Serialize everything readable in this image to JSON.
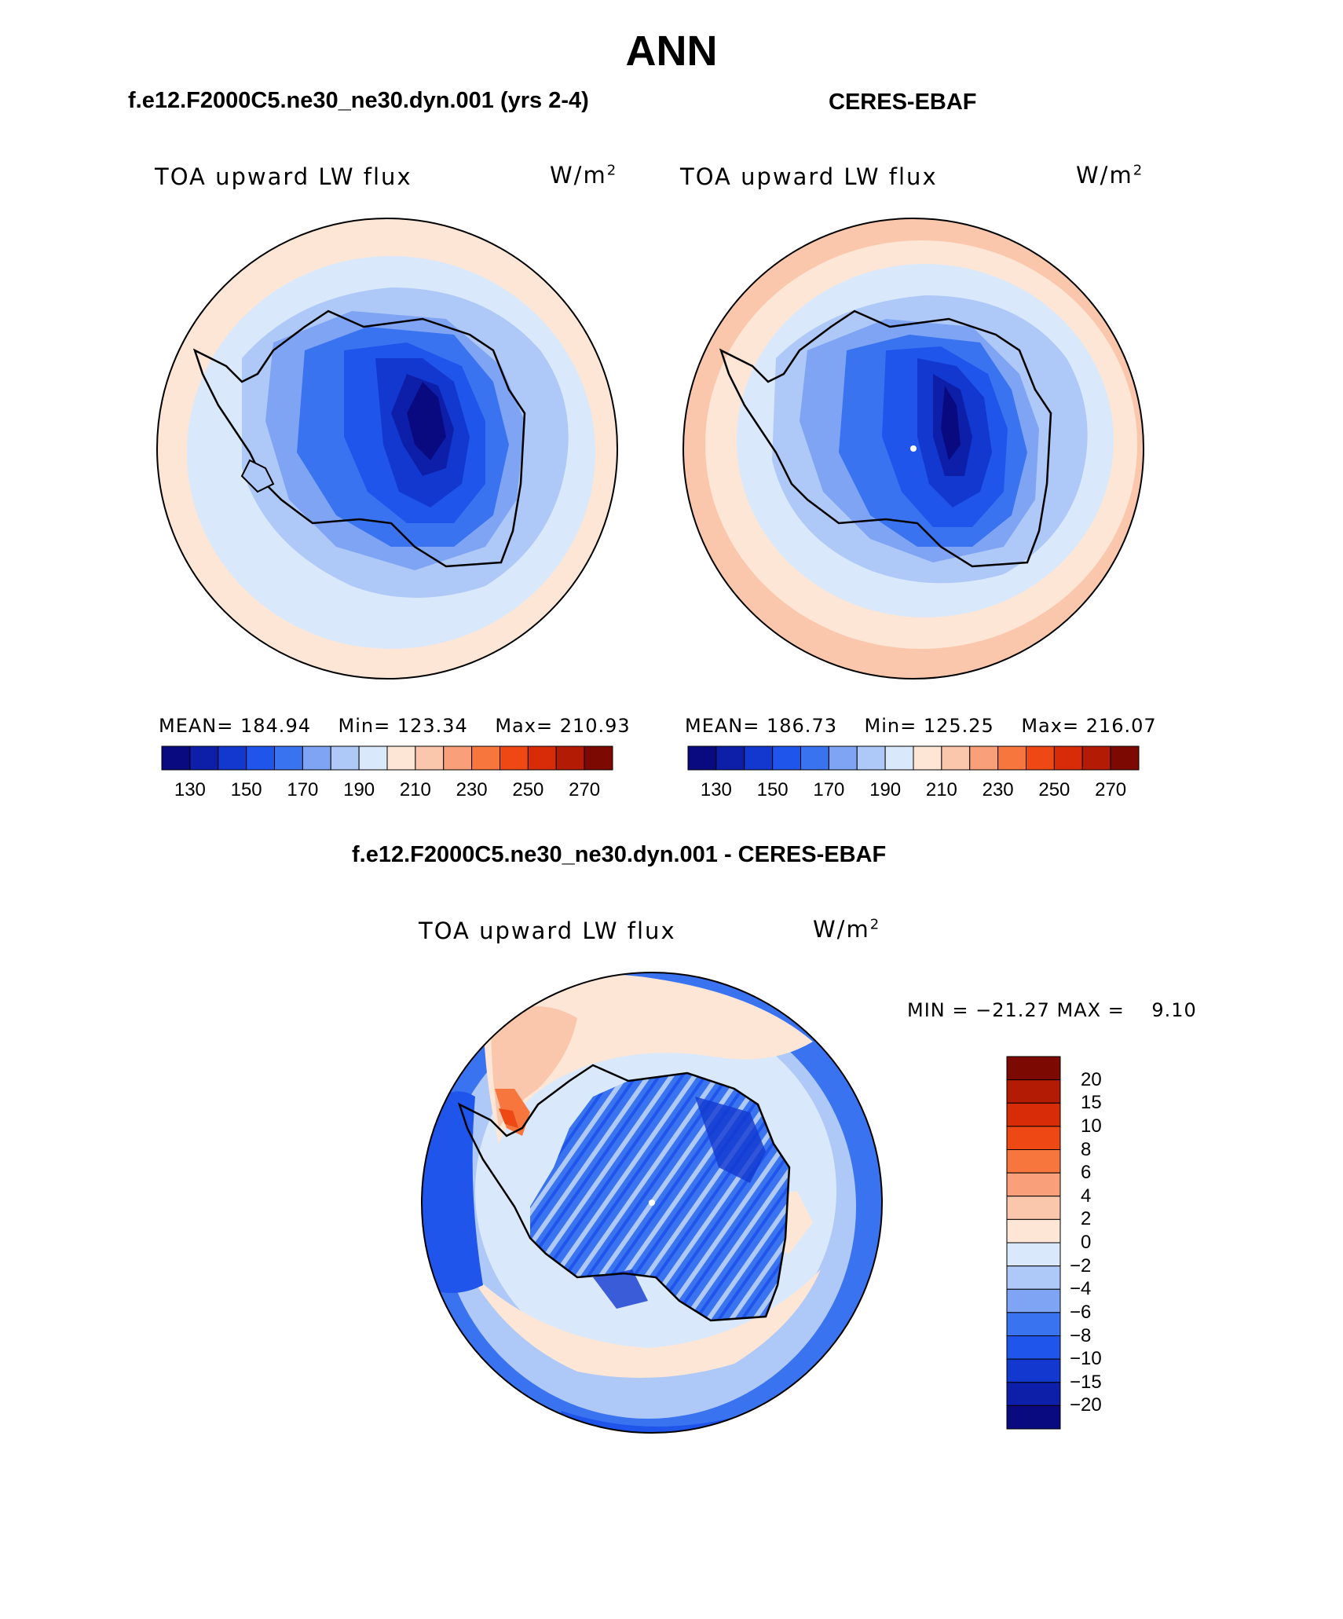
{
  "figure": {
    "season": "ANN"
  },
  "panels": [
    {
      "title": "f.e12.F2000C5.ne30_ne30.dyn.001 (yrs 2-4)",
      "variable": "TOA upward LW flux",
      "units_base": "W/m",
      "units_exp": "2",
      "mean_label": "MEAN=",
      "mean": "184.94",
      "min_label": "Min=",
      "min": "123.34",
      "max_label": "Max=",
      "max": "210.93"
    },
    {
      "title": "CERES-EBAF",
      "variable": "TOA upward LW flux",
      "units_base": "W/m",
      "units_exp": "2",
      "mean_label": "MEAN=",
      "mean": "186.73",
      "min_label": "Min=",
      "min": "125.25",
      "max_label": "Max=",
      "max": "216.07"
    }
  ],
  "difference": {
    "title": "f.e12.F2000C5.ne30_ne30.dyn.001 - CERES-EBAF",
    "variable": "TOA upward LW flux",
    "units_base": "W/m",
    "units_exp": "2",
    "minmax_text": "MIN = −21.27 MAX =    9.10"
  },
  "colorbar_main": {
    "tick_labels": [
      "130",
      "150",
      "170",
      "190",
      "210",
      "230",
      "250",
      "270"
    ],
    "colors": [
      "#0a0a80",
      "#0d1fa8",
      "#1238d0",
      "#1f55eb",
      "#3a73f0",
      "#7ea4f3",
      "#aec8f7",
      "#d9e9fb",
      "#fde6d5",
      "#fbc7ac",
      "#f9a07a",
      "#f6763e",
      "#ee4814",
      "#d82c09",
      "#b41b04",
      "#7d0a02"
    ]
  },
  "colorbar_diff": {
    "tick_labels": [
      "20",
      "15",
      "10",
      "8",
      "6",
      "4",
      "2",
      "0",
      "−2",
      "−4",
      "−6",
      "−8",
      "−10",
      "−15",
      "−20"
    ],
    "colors": [
      "#7d0a02",
      "#b41b04",
      "#d82c09",
      "#ee4814",
      "#f6763e",
      "#f9a07a",
      "#fbc7ac",
      "#fde6d5",
      "#d9e9fb",
      "#aec8f7",
      "#7ea4f3",
      "#3a73f0",
      "#1f55eb",
      "#1238d0",
      "#0d1fa8",
      "#0a0a80"
    ]
  },
  "chart_data": {
    "type": "heatmap",
    "title": "ANN",
    "projection": "south polar stereographic",
    "maps": [
      {
        "name": "f.e12.F2000C5.ne30_ne30.dyn.001 (yrs 2-4)",
        "variable": "TOA upward LW flux",
        "units": "W/m2",
        "mean": 184.94,
        "min": 123.34,
        "max": 210.93
      },
      {
        "name": "CERES-EBAF",
        "variable": "TOA upward LW flux",
        "units": "W/m2",
        "mean": 186.73,
        "min": 125.25,
        "max": 216.07
      },
      {
        "name": "f.e12.F2000C5.ne30_ne30.dyn.001 - CERES-EBAF",
        "variable": "TOA upward LW flux",
        "units": "W/m2",
        "min": -21.27,
        "max": 9.1
      }
    ],
    "levels_main": [
      130,
      140,
      150,
      160,
      170,
      180,
      190,
      200,
      210,
      220,
      230,
      240,
      250,
      260,
      270
    ],
    "levels_diff": [
      -20,
      -15,
      -10,
      -8,
      -6,
      -4,
      -2,
      0,
      2,
      4,
      6,
      8,
      10,
      15,
      20
    ]
  }
}
